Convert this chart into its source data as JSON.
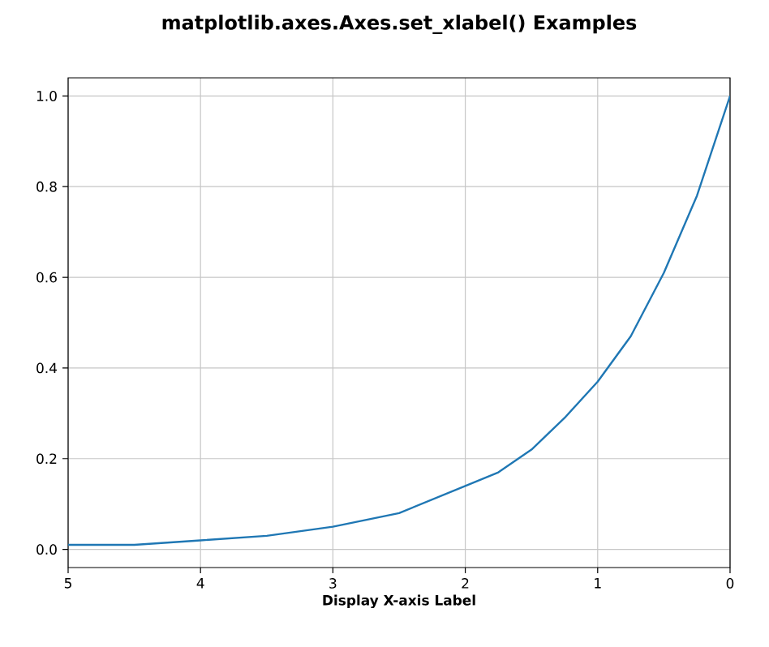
{
  "chart_data": {
    "type": "line",
    "title": "matplotlib.axes.Axes.set_xlabel() Examples",
    "xlabel": "Display X-axis Label",
    "x": [
      5,
      4.5,
      4,
      3.5,
      3,
      2.5,
      2,
      1.75,
      1.5,
      1.25,
      1,
      0.75,
      0.5,
      0.25,
      0
    ],
    "series": [
      {
        "color": "#1f77b4",
        "values": [
          0.01,
          0.01,
          0.02,
          0.03,
          0.05,
          0.08,
          0.14,
          0.17,
          0.22,
          0.29,
          0.37,
          0.47,
          0.61,
          0.78,
          1.0
        ]
      }
    ],
    "xlim": [
      5,
      0
    ],
    "ylim": [
      -0.04,
      1.04
    ],
    "xticks": [
      5,
      4,
      3,
      2,
      1,
      0
    ],
    "yticks": [
      {
        "value": 0,
        "label": "0.0"
      },
      {
        "value": 0.2,
        "label": "0.2"
      },
      {
        "value": 0.4,
        "label": "0.4"
      },
      {
        "value": 0.6,
        "label": "0.6"
      },
      {
        "value": 0.8,
        "label": "0.8"
      },
      {
        "value": 1,
        "label": "1.0"
      }
    ],
    "grid": true
  }
}
